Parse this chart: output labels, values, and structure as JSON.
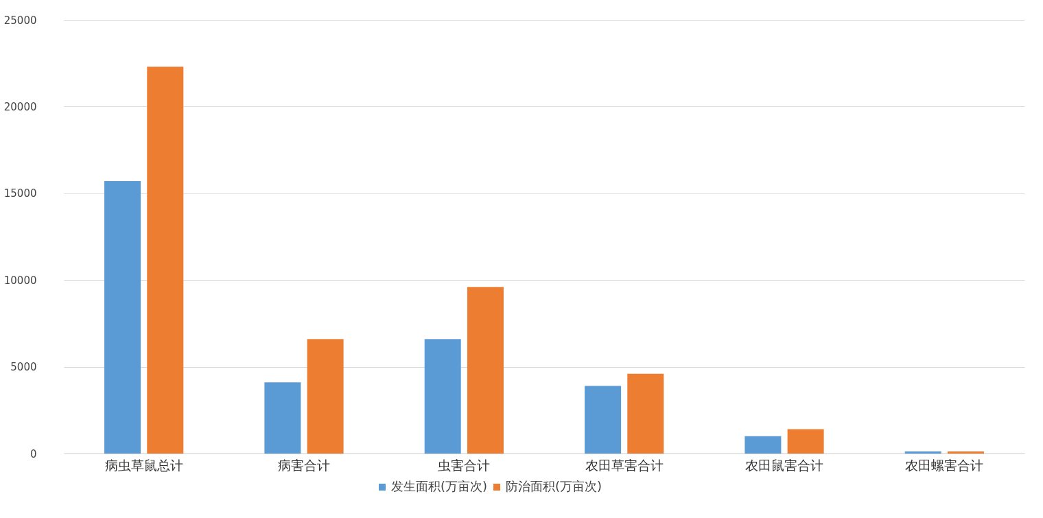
{
  "chart_data": {
    "type": "bar",
    "categories": [
      "病虫草鼠总计",
      "病害合计",
      "虫害合计",
      "农田草害合计",
      "农田鼠害合计",
      "农田螺害合计"
    ],
    "series": [
      {
        "name": "发生面积(万亩次)",
        "color": "#5b9bd5",
        "values": [
          15700,
          4100,
          6600,
          3900,
          1000,
          120
        ]
      },
      {
        "name": "防治面积(万亩次)",
        "color": "#ed7d31",
        "values": [
          22300,
          6600,
          9600,
          4600,
          1400,
          120
        ]
      }
    ],
    "ylim": [
      0,
      25000
    ],
    "yticks": [
      0,
      5000,
      10000,
      15000,
      20000,
      25000
    ],
    "grid": "y",
    "legend": "bottom"
  }
}
